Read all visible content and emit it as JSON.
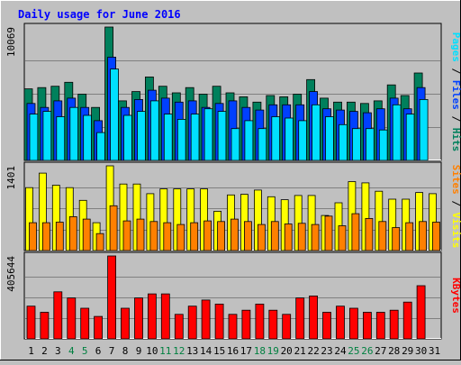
{
  "chart_data": {
    "type": "bar",
    "title": "Daily usage for June 2016",
    "days": [
      "1",
      "2",
      "3",
      "4",
      "5",
      "6",
      "7",
      "8",
      "9",
      "10",
      "11",
      "12",
      "13",
      "14",
      "15",
      "16",
      "17",
      "18",
      "19",
      "20",
      "21",
      "22",
      "23",
      "24",
      "25",
      "26",
      "27",
      "28",
      "29",
      "30",
      "31"
    ],
    "weekend_days": [
      "4",
      "5",
      "11",
      "12",
      "18",
      "19",
      "25",
      "26"
    ],
    "panels": [
      {
        "name": "hits-files-pages",
        "ylabel": "Pages / Files / Hits",
        "ymax_label": "10069",
        "ymax": 10069,
        "series": [
          {
            "name": "Hits",
            "color": "#00805c",
            "values": [
              5400,
              5500,
              5600,
              5900,
              5000,
              4000,
              10069,
              4500,
              5200,
              6300,
              5600,
              5100,
              5500,
              5000,
              5600,
              5100,
              4800,
              4400,
              4900,
              4800,
              5000,
              6100,
              4700,
              4400,
              4400,
              4300,
              4500,
              5700,
              4900,
              6600,
              null
            ]
          },
          {
            "name": "Files",
            "color": "#0040ff",
            "values": [
              4300,
              4000,
              4500,
              4700,
              4000,
              3000,
              7800,
              4000,
              4600,
              5300,
              4700,
              4400,
              4500,
              4000,
              4300,
              4500,
              4000,
              3800,
              4200,
              4200,
              4200,
              5200,
              3900,
              3800,
              3700,
              3600,
              3900,
              4700,
              3900,
              5500,
              null
            ]
          },
          {
            "name": "Pages",
            "color": "#00e0ff",
            "values": [
              3500,
              3700,
              3300,
              4000,
              3400,
              2100,
              6900,
              3400,
              3700,
              4500,
              3500,
              3100,
              3500,
              3900,
              3700,
              2400,
              3000,
              2400,
              3300,
              3200,
              3000,
              4200,
              3300,
              2700,
              2400,
              2400,
              2300,
              4200,
              3500,
              4600,
              null
            ]
          }
        ]
      },
      {
        "name": "visits-sites",
        "ylabel": "Sites / Visits",
        "ymax_label": "1401",
        "ymax": 1401,
        "series": [
          {
            "name": "Visits",
            "color": "#ffff00",
            "values": [
              1040,
              1280,
              1080,
              1040,
              830,
              460,
              1401,
              1100,
              1100,
              940,
              1020,
              1020,
              1020,
              1020,
              650,
              920,
              930,
              1000,
              890,
              840,
              910,
              910,
              580,
              790,
              1140,
              1120,
              980,
              850,
              850,
              960,
              940
            ]
          },
          {
            "name": "Sites",
            "color": "#ff8000",
            "values": [
              460,
              460,
              470,
              560,
              520,
              280,
              740,
              490,
              520,
              480,
              460,
              430,
              460,
              490,
              480,
              520,
              480,
              430,
              480,
              440,
              450,
              430,
              570,
              410,
              610,
              530,
              480,
              380,
              460,
              480,
              470
            ]
          }
        ]
      },
      {
        "name": "kbytes",
        "ylabel": "KBytes",
        "ymax_label": "405644",
        "ymax": 405644,
        "series": [
          {
            "name": "KBytes",
            "color": "#ff0000",
            "values": [
              160000,
              130000,
              230000,
              200000,
              150000,
              110000,
              405644,
              150000,
              200000,
              220000,
              220000,
              120000,
              160000,
              190000,
              170000,
              120000,
              140000,
              170000,
              140000,
              120000,
              200000,
              210000,
              130000,
              160000,
              150000,
              130000,
              130000,
              140000,
              180000,
              260000,
              null
            ]
          }
        ]
      }
    ]
  }
}
